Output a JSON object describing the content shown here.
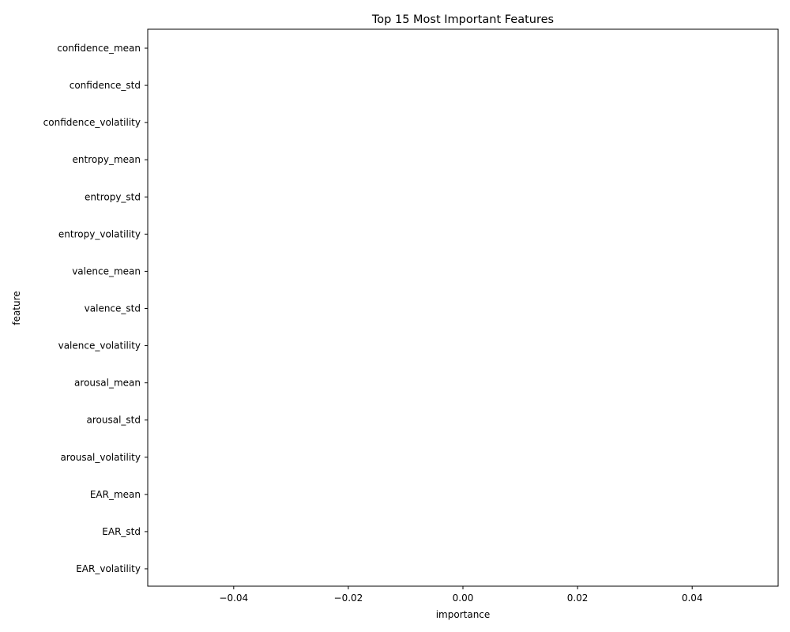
{
  "chart_data": {
    "type": "bar",
    "orientation": "horizontal",
    "title": "Top 15 Most Important Features",
    "xlabel": "importance",
    "ylabel": "feature",
    "categories": [
      "confidence_mean",
      "confidence_std",
      "confidence_volatility",
      "entropy_mean",
      "entropy_std",
      "entropy_volatility",
      "valence_mean",
      "valence_std",
      "valence_volatility",
      "arousal_mean",
      "arousal_std",
      "arousal_volatility",
      "EAR_mean",
      "EAR_std",
      "EAR_volatility"
    ],
    "values": [
      0,
      0,
      0,
      0,
      0,
      0,
      0,
      0,
      0,
      0,
      0,
      0,
      0,
      0,
      0
    ],
    "xlim": [
      -0.055,
      0.055
    ],
    "xticks": [
      -0.04,
      -0.02,
      0.0,
      0.02,
      0.04
    ],
    "xtick_labels": [
      "−0.04",
      "−0.02",
      "0.00",
      "0.02",
      "0.04"
    ],
    "grid": false,
    "legend": "none",
    "bar_color": "#1f77b4"
  }
}
